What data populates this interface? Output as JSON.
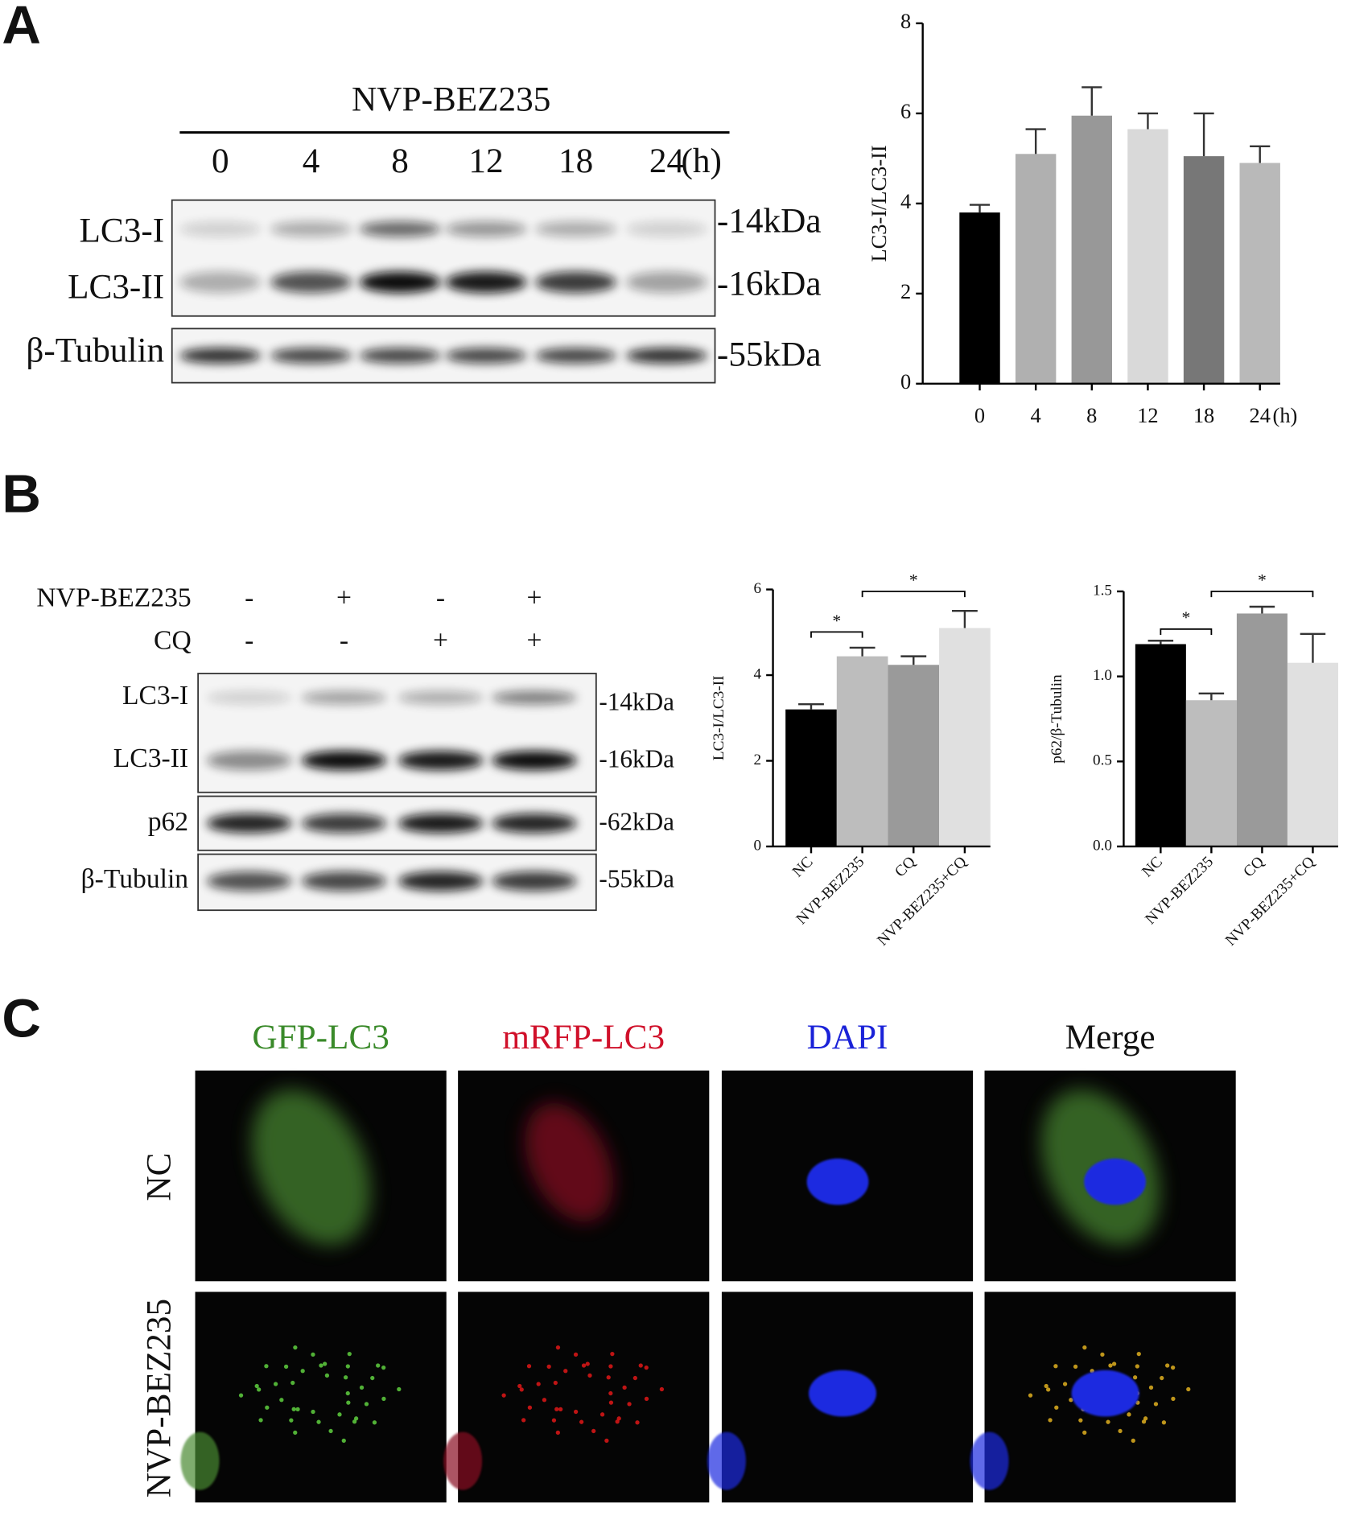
{
  "panels": [
    "A",
    "B",
    "C"
  ],
  "blot_a": {
    "treatment": "NVP-BEZ235",
    "lanes": [
      "0",
      "4",
      "8",
      "12",
      "18",
      "24"
    ],
    "unit": "(h)",
    "proteins": [
      "LC3-I",
      "LC3-II",
      "β-Tubulin"
    ],
    "sizes": [
      "-14kDa",
      "-16kDa",
      "-55kDa"
    ]
  },
  "blot_b": {
    "rows": [
      {
        "name": "NVP-BEZ235",
        "signs": [
          "-",
          "+",
          "-",
          "+"
        ]
      },
      {
        "name": "CQ",
        "signs": [
          "-",
          "-",
          "+",
          "+"
        ]
      }
    ],
    "proteins": [
      "LC3-I",
      "LC3-II",
      "p62",
      "β-Tubulin"
    ],
    "sizes": [
      "-14kDa",
      "-16kDa",
      "-62kDa",
      "-55kDa"
    ]
  },
  "panel_c": {
    "channels": [
      "GFP-LC3",
      "mRFP-LC3",
      "DAPI",
      "Merge"
    ],
    "channel_colors": [
      "#3a8a2a",
      "#d0102a",
      "#1a22d8",
      "#111111"
    ],
    "conditions": [
      "NC",
      "NVP-BEZ235"
    ]
  },
  "chart_data": [
    {
      "type": "bar",
      "y_label": "LC3-I/LC3-II",
      "categories": [
        "0",
        "4",
        "8",
        "12",
        "18",
        "24"
      ],
      "x_unit": "(h)",
      "values": [
        3.8,
        5.1,
        5.95,
        5.65,
        5.05,
        4.9
      ],
      "errors": [
        0.17,
        0.55,
        0.63,
        0.35,
        0.95,
        0.37
      ],
      "colors": [
        "#000000",
        "#b0b0b0",
        "#989898",
        "#d9d9d9",
        "#777777",
        "#b9b9b9"
      ],
      "ylim": [
        0,
        8
      ],
      "yticks": [
        0,
        2,
        4,
        6,
        8
      ]
    },
    {
      "type": "bar",
      "y_label": "LC3-I/LC3-II",
      "categories": [
        "NC",
        "NVP-BEZ235",
        "CQ",
        "NVP-BEZ235+CQ"
      ],
      "values": [
        3.2,
        4.44,
        4.24,
        5.1
      ],
      "errors": [
        0.12,
        0.2,
        0.2,
        0.4
      ],
      "colors": [
        "#000000",
        "#bdbdbd",
        "#9a9a9a",
        "#e0e0e0"
      ],
      "ylim": [
        0,
        6
      ],
      "yticks": [
        0,
        2,
        4,
        6
      ],
      "annotations": [
        {
          "text": "*",
          "between": [
            "NC",
            "NVP-BEZ235"
          ]
        },
        {
          "text": "*",
          "between": [
            "NVP-BEZ235",
            "NVP-BEZ235+CQ"
          ]
        }
      ]
    },
    {
      "type": "bar",
      "y_label": "p62/β-Tubulin",
      "categories": [
        "NC",
        "NVP-BEZ235",
        "CQ",
        "NVP-BEZ235+CQ"
      ],
      "values": [
        1.19,
        0.86,
        1.37,
        1.08
      ],
      "errors": [
        0.02,
        0.04,
        0.04,
        0.17
      ],
      "colors": [
        "#000000",
        "#bdbdbd",
        "#9a9a9a",
        "#e0e0e0"
      ],
      "ylim": [
        0,
        1.5
      ],
      "yticks": [
        {
          "value": 0,
          "label": "0.0"
        },
        0.5,
        {
          "value": 1,
          "label": "1.0"
        },
        1.5
      ],
      "annotations": [
        {
          "text": "*",
          "between": [
            "NC",
            "NVP-BEZ235"
          ]
        },
        {
          "text": "*",
          "between": [
            "NVP-BEZ235",
            "NVP-BEZ235+CQ"
          ]
        }
      ]
    }
  ]
}
